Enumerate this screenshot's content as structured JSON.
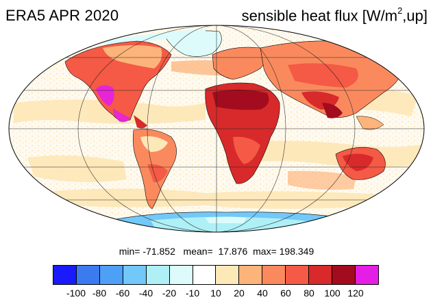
{
  "title": "ERA5 APR 2020",
  "variable_title_base": "sensible heat flux [W/m",
  "variable_title_sup": "2",
  "variable_title_tail": ",up]",
  "stats": {
    "min_label": "min=",
    "min": "-71.852",
    "mean_label": "mean=",
    "mean": "17.876",
    "max_label": "max=",
    "max": "198.349"
  },
  "colorbar": {
    "colors": [
      "#1a1aff",
      "#3a7cf0",
      "#4da0f5",
      "#72c8f8",
      "#aef0f5",
      "#ddfbfb",
      "#ffffff",
      "#fde8b8",
      "#fcb47a",
      "#fa8a5e",
      "#f45a45",
      "#d82a2a",
      "#a30c1e",
      "#e51ee5"
    ],
    "labels": [
      "-100",
      "-80",
      "-60",
      "-40",
      "-20",
      "-10",
      "10",
      "20",
      "40",
      "60",
      "80",
      "100",
      "120"
    ]
  },
  "map": {
    "projection": "mollweide",
    "continents": [
      "North America",
      "South America",
      "Europe",
      "Africa",
      "Asia",
      "Australia",
      "Antarctica",
      "Greenland"
    ]
  }
}
